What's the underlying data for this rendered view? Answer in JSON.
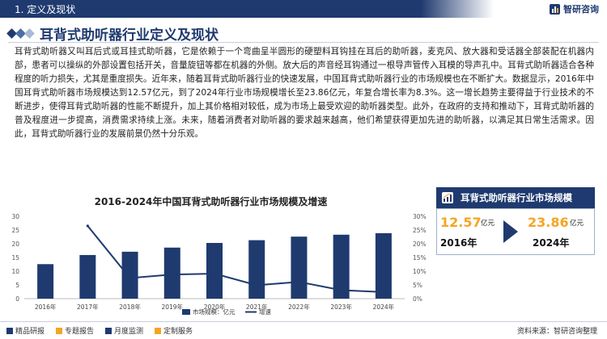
{
  "header": {
    "section": "1. 定义及现状",
    "brand": "智研咨询",
    "main_title": "耳背式助听器行业定义及现状"
  },
  "paragraph": "耳背式助听器又叫耳后式或耳挂式助听器，它是依赖于一个弯曲呈半圆形的硬塑料耳钩挂在耳后的助听器，麦克风、放大器和受话器全部装配在机器内部，患者可以操纵的外部设置包括开关，音量旋钮等都在机器的外侧。放大后的声音经耳钩通过一根导声管传入耳模的导声孔中。耳背式助听器适合各种程度的听力损失，尤其是重度损失。近年来，随着耳背式助听器行业的快速发展，中国耳背式助听器行业的市场规模也在不断扩大。数据显示，2016年中国耳背式助听器市场规模达到12.57亿元，到了2024年行业市场规模增长至23.86亿元，年复合增长率为8.3%。这一增长趋势主要得益于行业技术的不断进步，使得耳背式助听器的性能不断提升，加上其价格相对较低，成为市场上最受欢迎的助听器类型。此外，在政府的支持和推动下，耳背式助听器的普及程度进一步提高，消费需求持续上涨。未来，随着消费者对助听器的要求越来越高，他们希望获得更加先进的助听器，以满足其日常生活需求。因此，耳背式助听器行业的发展前景仍然十分乐观。",
  "chart_data": {
    "type": "bar",
    "title": "2016-2024年中国耳背式助听器行业市场规模及增速",
    "categories": [
      "2016年",
      "2017年",
      "2018年",
      "2019年",
      "2020年",
      "2021年",
      "2022年",
      "2023年",
      "2024年"
    ],
    "series": [
      {
        "name": "市场规模：亿元",
        "type": "bar",
        "axis": "left",
        "values": [
          12.57,
          15.9,
          17.1,
          18.6,
          20.3,
          21.3,
          22.6,
          23.3,
          23.86
        ],
        "color": "#1f3a6f"
      },
      {
        "name": "增速",
        "type": "line",
        "axis": "right",
        "values": [
          null,
          26.5,
          7.5,
          8.8,
          9.1,
          4.9,
          6.1,
          3.1,
          2.4
        ],
        "color": "#1f3a6f"
      }
    ],
    "left_ticks": [
      "30",
      "25",
      "20",
      "15",
      "10",
      "5",
      "0"
    ],
    "right_ticks": [
      "30%",
      "25%",
      "20%",
      "15%",
      "10%",
      "5%",
      "0%"
    ],
    "ylim_left": [
      0,
      30
    ],
    "ylim_right": [
      0,
      30
    ],
    "legend_position": "bottom"
  },
  "panel": {
    "title": "耳背式助听器行业市场规模",
    "start_value": "12.57",
    "start_unit": "亿元",
    "start_year": "2016年",
    "end_value": "23.86",
    "end_unit": "亿元",
    "end_year": "2024年"
  },
  "footer": {
    "items": [
      "精品研报",
      "专题报告",
      "月度监测",
      "定制服务"
    ],
    "source": "资料来源：智研咨询整理"
  },
  "colors": {
    "primary": "#1f3a6f",
    "accent": "#f5a524",
    "diamonds": [
      "#1f3a6f",
      "#4a6fa5",
      "#a9bad6"
    ],
    "footer_squares": [
      "#1f3a6f",
      "#f5a524",
      "#1f3a6f",
      "#f5a524"
    ]
  }
}
